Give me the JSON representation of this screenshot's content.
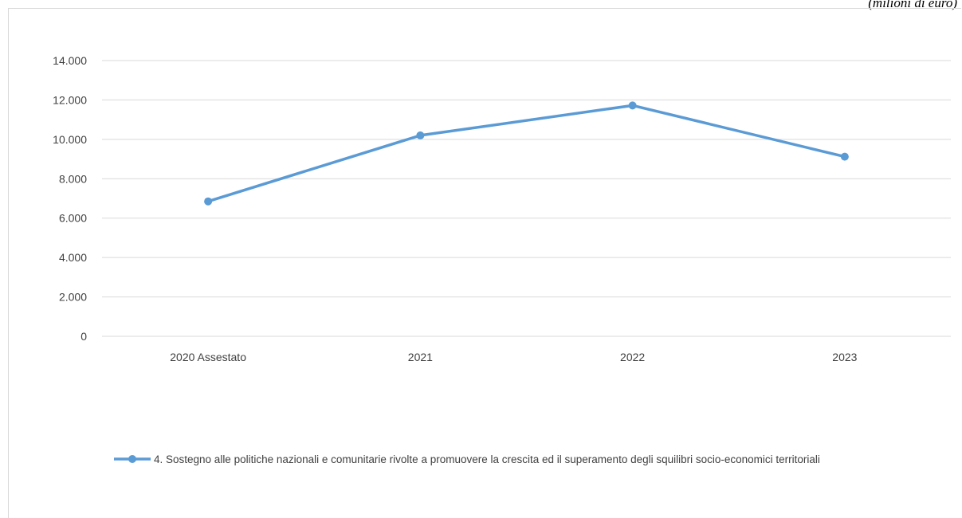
{
  "note": "(milioni di euro)",
  "chart_data": {
    "type": "line",
    "categories": [
      "2020 Assestato",
      "2021",
      "2022",
      "2023"
    ],
    "series": [
      {
        "name": "4. Sostegno alle politiche nazionali e comunitarie rivolte a promuovere la crescita ed il superamento degli squilibri socio-economici territoriali",
        "values": [
          6850,
          10200,
          11720,
          9120
        ]
      }
    ],
    "yticks": [
      "0",
      "2.000",
      "4.000",
      "6.000",
      "8.000",
      "10.000",
      "12.000",
      "14.000"
    ],
    "ylim": [
      0,
      14000
    ],
    "grid": true,
    "legend_position": "bottom",
    "colors": {
      "series": "#5b9bd5",
      "grid": "#d9d9d9",
      "text": "#404040"
    }
  }
}
